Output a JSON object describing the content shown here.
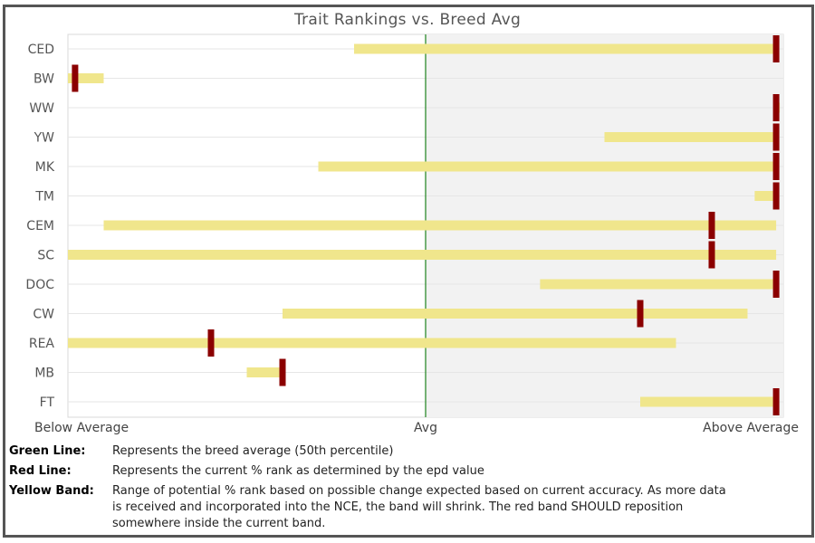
{
  "chart_data": {
    "type": "range-rank",
    "title": "Trait Rankings vs. Breed Avg",
    "x_axis": {
      "min": 0,
      "max": 100,
      "labels": [
        {
          "text": "Below Average",
          "value": 0
        },
        {
          "text": "Avg",
          "value": 50
        },
        {
          "text": "Above Average",
          "value": 100
        }
      ]
    },
    "average_value": 50,
    "traits": [
      {
        "name": "CED",
        "band": [
          40,
          99
        ],
        "rank": 99
      },
      {
        "name": "BW",
        "band": [
          0,
          5
        ],
        "rank": 1
      },
      {
        "name": "WW",
        "band": [
          99,
          99
        ],
        "rank": 99
      },
      {
        "name": "YW",
        "band": [
          75,
          99
        ],
        "rank": 99
      },
      {
        "name": "MK",
        "band": [
          35,
          99
        ],
        "rank": 99
      },
      {
        "name": "TM",
        "band": [
          96,
          99
        ],
        "rank": 99
      },
      {
        "name": "CEM",
        "band": [
          5,
          99
        ],
        "rank": 90
      },
      {
        "name": "SC",
        "band": [
          0,
          99
        ],
        "rank": 90
      },
      {
        "name": "DOC",
        "band": [
          66,
          99
        ],
        "rank": 99
      },
      {
        "name": "CW",
        "band": [
          30,
          95
        ],
        "rank": 80
      },
      {
        "name": "REA",
        "band": [
          0,
          85
        ],
        "rank": 20
      },
      {
        "name": "MB",
        "band": [
          25,
          30
        ],
        "rank": 30
      },
      {
        "name": "FT",
        "band": [
          80,
          99
        ],
        "rank": 99
      }
    ],
    "colors": {
      "band": "#f0e68c",
      "rank": "#8b0000",
      "average": "#2e8b2e",
      "above_average_shade": "#f2f2f2"
    }
  },
  "legend": [
    {
      "key": "Green Line:",
      "text": "Represents the breed average (50th percentile)"
    },
    {
      "key": "Red Line:",
      "text": "Represents the current % rank as determined by the epd value"
    },
    {
      "key": "Yellow Band:",
      "text": "Range of potential % rank based on possible change expected based on current accuracy. As more data is received and incorporated into the NCE, the band will shrink. The red band SHOULD reposition somewhere inside the current band."
    }
  ]
}
